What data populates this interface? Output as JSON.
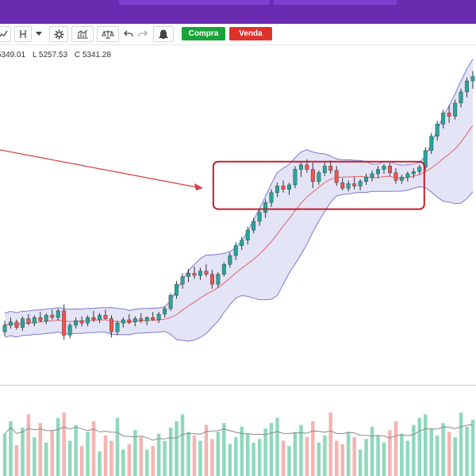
{
  "toolbar": {
    "buy_label": "Compra",
    "sell_label": "Venda",
    "icons": [
      "chart-type-icon",
      "indicator-fork-icon",
      "dropdown-caret-icon",
      "settings-gear-icon",
      "studies-icon",
      "compare-icon",
      "undo-icon",
      "redo-icon",
      "alert-bell-icon"
    ]
  },
  "ohlc": {
    "high": "5349.01",
    "low": "L 5257.53",
    "close": "C 5341.28"
  },
  "colors": {
    "topbar": "#6b2bb0",
    "up": "#26a69a",
    "down": "#ef5350",
    "band_fill": "#c9c9f0",
    "band_line": "#7a78d8",
    "ma_line": "#e06666",
    "highlight": "#c0202a",
    "vol_up": "#8fd9bb",
    "vol_down": "#f4b4b2"
  },
  "chart_data": {
    "type": "candlestick",
    "candles": [
      [
        5240,
        5260,
        5232,
        5252
      ],
      [
        5252,
        5266,
        5246,
        5258
      ],
      [
        5258,
        5262,
        5244,
        5248
      ],
      [
        5248,
        5268,
        5242,
        5264
      ],
      [
        5264,
        5272,
        5252,
        5256
      ],
      [
        5256,
        5270,
        5250,
        5266
      ],
      [
        5266,
        5276,
        5258,
        5260
      ],
      [
        5260,
        5274,
        5254,
        5270
      ],
      [
        5270,
        5280,
        5262,
        5266
      ],
      [
        5266,
        5282,
        5260,
        5278
      ],
      [
        5278,
        5290,
        5226,
        5234
      ],
      [
        5234,
        5256,
        5228,
        5252
      ],
      [
        5252,
        5266,
        5246,
        5260
      ],
      [
        5260,
        5268,
        5250,
        5256
      ],
      [
        5256,
        5270,
        5250,
        5266
      ],
      [
        5266,
        5278,
        5258,
        5262
      ],
      [
        5262,
        5274,
        5256,
        5270
      ],
      [
        5270,
        5280,
        5262,
        5264
      ],
      [
        5264,
        5270,
        5230,
        5240
      ],
      [
        5240,
        5260,
        5234,
        5256
      ],
      [
        5256,
        5266,
        5248,
        5262
      ],
      [
        5262,
        5272,
        5254,
        5258
      ],
      [
        5258,
        5268,
        5250,
        5264
      ],
      [
        5264,
        5274,
        5256,
        5260
      ],
      [
        5260,
        5268,
        5252,
        5266
      ],
      [
        5266,
        5276,
        5260,
        5262
      ],
      [
        5262,
        5276,
        5256,
        5272
      ],
      [
        5272,
        5286,
        5266,
        5282
      ],
      [
        5282,
        5310,
        5278,
        5306
      ],
      [
        5306,
        5332,
        5300,
        5326
      ],
      [
        5326,
        5346,
        5318,
        5340
      ],
      [
        5340,
        5354,
        5330,
        5346
      ],
      [
        5346,
        5358,
        5336,
        5342
      ],
      [
        5342,
        5356,
        5334,
        5350
      ],
      [
        5350,
        5362,
        5340,
        5344
      ],
      [
        5344,
        5352,
        5318,
        5326
      ],
      [
        5326,
        5348,
        5320,
        5344
      ],
      [
        5344,
        5366,
        5340,
        5362
      ],
      [
        5362,
        5384,
        5356,
        5378
      ],
      [
        5378,
        5402,
        5370,
        5396
      ],
      [
        5396,
        5412,
        5388,
        5406
      ],
      [
        5406,
        5430,
        5398,
        5424
      ],
      [
        5424,
        5446,
        5418,
        5440
      ],
      [
        5440,
        5462,
        5432,
        5456
      ],
      [
        5456,
        5480,
        5446,
        5474
      ],
      [
        5474,
        5498,
        5466,
        5492
      ],
      [
        5492,
        5510,
        5484,
        5504
      ],
      [
        5504,
        5514,
        5492,
        5498
      ],
      [
        5498,
        5510,
        5488,
        5506
      ],
      [
        5506,
        5540,
        5500,
        5534
      ],
      [
        5534,
        5548,
        5520,
        5542
      ],
      [
        5542,
        5552,
        5528,
        5534
      ],
      [
        5534,
        5546,
        5500,
        5512
      ],
      [
        5512,
        5532,
        5506,
        5528
      ],
      [
        5528,
        5546,
        5522,
        5540
      ],
      [
        5540,
        5550,
        5526,
        5532
      ],
      [
        5532,
        5540,
        5504,
        5510
      ],
      [
        5510,
        5518,
        5496,
        5500
      ],
      [
        5500,
        5514,
        5494,
        5508
      ],
      [
        5508,
        5520,
        5498,
        5504
      ],
      [
        5504,
        5516,
        5496,
        5512
      ],
      [
        5512,
        5526,
        5506,
        5520
      ],
      [
        5520,
        5532,
        5512,
        5526
      ],
      [
        5526,
        5540,
        5518,
        5534
      ],
      [
        5534,
        5544,
        5526,
        5540
      ],
      [
        5540,
        5546,
        5522,
        5528
      ],
      [
        5528,
        5536,
        5508,
        5514
      ],
      [
        5514,
        5524,
        5508,
        5520
      ],
      [
        5520,
        5530,
        5512,
        5526
      ],
      [
        5526,
        5536,
        5518,
        5530
      ],
      [
        5530,
        5542,
        5524,
        5538
      ],
      [
        5538,
        5574,
        5532,
        5568
      ],
      [
        5568,
        5600,
        5562,
        5594
      ],
      [
        5594,
        5622,
        5586,
        5616
      ],
      [
        5616,
        5642,
        5608,
        5636
      ],
      [
        5636,
        5650,
        5618,
        5630
      ],
      [
        5630,
        5660,
        5624,
        5654
      ],
      [
        5654,
        5680,
        5646,
        5674
      ],
      [
        5674,
        5700,
        5664,
        5694
      ],
      [
        5694,
        5712,
        5680,
        5702
      ]
    ],
    "volumes": [
      48,
      62,
      35,
      55,
      70,
      44,
      60,
      38,
      52,
      66,
      72,
      40,
      58,
      34,
      50,
      62,
      28,
      46,
      40,
      66,
      30,
      36,
      52,
      44,
      30,
      34,
      48,
      40,
      55,
      62,
      70,
      50,
      46,
      40,
      58,
      42,
      50,
      60,
      36,
      44,
      56,
      48,
      38,
      42,
      54,
      60,
      66,
      40,
      34,
      50,
      58,
      44,
      62,
      38,
      46,
      72,
      40,
      36,
      50,
      44,
      30,
      42,
      56,
      46,
      38,
      52,
      62,
      48,
      40,
      58,
      66,
      70,
      54,
      46,
      60,
      50,
      44,
      72,
      56,
      64
    ]
  }
}
